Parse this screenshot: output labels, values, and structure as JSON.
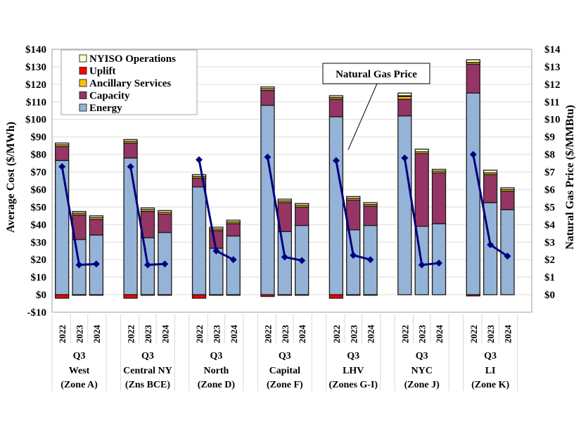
{
  "chart_data": {
    "type": "bar",
    "subtype": "stacked-bar-with-line-secondary-axis",
    "ylabel": "Average Cost ($/MWh)",
    "y2label": "Natural Gas Price ($/MMBtu)",
    "ylim": [
      -10,
      140
    ],
    "y2lim": [
      -1,
      14
    ],
    "yticks": [
      "-$10",
      "$0",
      "$10",
      "$20",
      "$30",
      "$40",
      "$50",
      "$60",
      "$70",
      "$80",
      "$90",
      "$100",
      "$110",
      "$120",
      "$130",
      "$140"
    ],
    "y2ticks": [
      "$0",
      "$1",
      "$2",
      "$3",
      "$4",
      "$5",
      "$6",
      "$7",
      "$8",
      "$9",
      "$10",
      "$11",
      "$12",
      "$13",
      "$14"
    ],
    "grid": true,
    "legend_position": "top-left",
    "legend": [
      "NYISO Operations",
      "Uplift",
      "Ancillary Services",
      "Capacity",
      "Energy"
    ],
    "annotation": "Natural Gas Price",
    "colors": {
      "Energy": "#95b3d7",
      "Capacity": "#953563",
      "Ancillary Services": "#ffc000",
      "Uplift": "#ff0000",
      "NYISO Operations": "#ffffcc",
      "gas_line": "#00007f",
      "grid": "#e8e8e8"
    },
    "period": "Q3",
    "years": [
      "2022",
      "2023",
      "2024"
    ],
    "groups": [
      {
        "name": "West",
        "zone": "(Zone A)"
      },
      {
        "name": "Central NY",
        "zone": "(Zns BCE)"
      },
      {
        "name": "North",
        "zone": "(Zone D)"
      },
      {
        "name": "Capital",
        "zone": "(Zone F)"
      },
      {
        "name": "LHV",
        "zone": "(Zones G-I)"
      },
      {
        "name": "NYC",
        "zone": "(Zone J)"
      },
      {
        "name": "LI",
        "zone": "(Zone K)"
      }
    ],
    "series": [
      {
        "name": "Energy",
        "values": [
          [
            76.5,
            31.5,
            34
          ],
          [
            78,
            32.5,
            35.5
          ],
          [
            61.5,
            26.5,
            33.5
          ],
          [
            108,
            36,
            39.5
          ],
          [
            101.5,
            37,
            39.5
          ],
          [
            102,
            39,
            40.5
          ],
          [
            115,
            52.5,
            48.5
          ]
        ]
      },
      {
        "name": "Capacity",
        "values": [
          [
            8,
            14,
            9
          ],
          [
            8.5,
            15,
            10.5
          ],
          [
            5,
            10,
            7
          ],
          [
            8.5,
            16.5,
            10.5
          ],
          [
            10,
            17,
            11
          ],
          [
            9.5,
            41.5,
            29
          ],
          [
            16.5,
            16,
            10.5
          ]
        ]
      },
      {
        "name": "Ancillary Services",
        "values": [
          [
            1,
            1,
            1
          ],
          [
            1,
            1,
            1
          ],
          [
            1,
            1,
            1
          ],
          [
            1,
            1,
            1
          ],
          [
            1,
            1,
            1
          ],
          [
            1.5,
            1,
            1
          ],
          [
            1,
            1,
            1
          ]
        ]
      },
      {
        "name": "Uplift",
        "values": [
          [
            -2,
            -0.3,
            -0.3
          ],
          [
            -2,
            -0.3,
            -0.3
          ],
          [
            -2,
            -0.3,
            -0.3
          ],
          [
            -1,
            -0.3,
            -0.3
          ],
          [
            -2,
            -0.3,
            -0.3
          ],
          [
            0.5,
            0,
            0
          ],
          [
            -0.7,
            0,
            0
          ]
        ]
      },
      {
        "name": "NYISO Operations",
        "values": [
          [
            1,
            1,
            1
          ],
          [
            1,
            1,
            1
          ],
          [
            1,
            1,
            1
          ],
          [
            1,
            1,
            1
          ],
          [
            1,
            1,
            1
          ],
          [
            1.5,
            1.5,
            1
          ],
          [
            1.5,
            1.5,
            1
          ]
        ]
      },
      {
        "name": "Natural Gas Price",
        "axis": "secondary",
        "values": [
          [
            7.3,
            1.7,
            1.75
          ],
          [
            7.3,
            1.7,
            1.75
          ],
          [
            7.7,
            2.5,
            2.0
          ],
          [
            7.85,
            2.15,
            1.95
          ],
          [
            7.65,
            2.25,
            2.0
          ],
          [
            7.8,
            1.7,
            1.8
          ],
          [
            8.0,
            2.85,
            2.2
          ]
        ]
      }
    ]
  }
}
